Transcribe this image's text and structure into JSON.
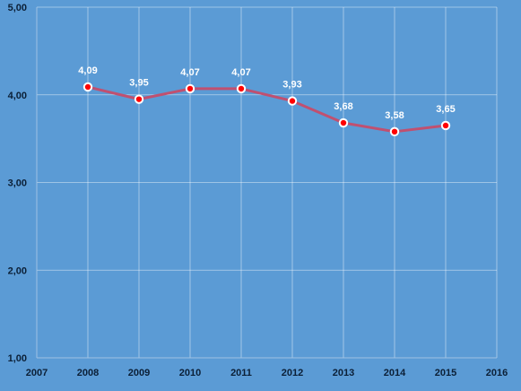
{
  "colors": {
    "background": "#5b9bd5",
    "grid": "#ffffff",
    "axis_line": "#9fc2e3",
    "series_line": "#c05070",
    "marker_fill": "#ff0000",
    "marker_stroke": "#ffffff",
    "tick_text": "#0b1f36",
    "data_label_text": "#ffffff"
  },
  "chart_data": {
    "type": "line",
    "x": [
      2008,
      2009,
      2010,
      2011,
      2012,
      2013,
      2014,
      2015
    ],
    "series": [
      {
        "values": [
          4.09,
          3.95,
          4.07,
          4.07,
          3.93,
          3.68,
          3.58,
          3.65
        ],
        "data_labels": [
          "4,09",
          "3,95",
          "4,07",
          "4,07",
          "3,93",
          "3,68",
          "3,58",
          "3,65"
        ]
      }
    ],
    "xlim": [
      2007,
      2016
    ],
    "ylim": [
      1,
      5
    ],
    "x_ticks": [
      2007,
      2008,
      2009,
      2010,
      2011,
      2012,
      2013,
      2014,
      2015,
      2016
    ],
    "x_tick_labels": [
      "2007",
      "2008",
      "2009",
      "2010",
      "2011",
      "2012",
      "2013",
      "2014",
      "2015",
      "2016"
    ],
    "y_ticks": [
      1,
      2,
      3,
      4,
      5
    ],
    "y_tick_labels": [
      "1,00",
      "2,00",
      "3,00",
      "4,00",
      "5,00"
    ],
    "grid": true,
    "legend": "none"
  }
}
